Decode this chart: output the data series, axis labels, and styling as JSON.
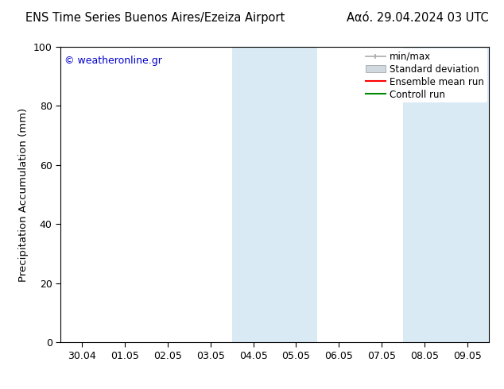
{
  "title_left": "ENS Time Series Buenos Aires/Ezeiza Airport",
  "title_right": "Ααό. 29.04.2024 03 UTC",
  "ylabel": "Precipitation Accumulation (mm)",
  "watermark": "© weatheronline.gr",
  "watermark_color": "#0000cc",
  "ylim": [
    0,
    100
  ],
  "yticks": [
    0,
    20,
    40,
    60,
    80,
    100
  ],
  "xtick_labels": [
    "30.04",
    "01.05",
    "02.05",
    "03.05",
    "04.05",
    "05.05",
    "06.05",
    "07.05",
    "08.05",
    "09.05"
  ],
  "background_color": "#ffffff",
  "plot_bg_color": "#ffffff",
  "shaded_regions": [
    {
      "xstart": 3.5,
      "xend": 4.5,
      "color": "#daeaf5"
    },
    {
      "xstart": 4.5,
      "xend": 5.5,
      "color": "#daeaf5"
    },
    {
      "xstart": 7.5,
      "xend": 8.5,
      "color": "#daeaf5"
    },
    {
      "xstart": 8.5,
      "xend": 9.5,
      "color": "#daeaf5"
    }
  ],
  "legend_items": [
    {
      "label": "min/max",
      "color": "#aaaaaa",
      "type": "errorbar"
    },
    {
      "label": "Standard deviation",
      "color": "#cccccc",
      "type": "bar"
    },
    {
      "label": "Ensemble mean run",
      "color": "#ff0000",
      "type": "line"
    },
    {
      "label": "Controll run",
      "color": "#008800",
      "type": "line"
    }
  ],
  "title_fontsize": 10.5,
  "axis_fontsize": 9.5,
  "tick_fontsize": 9,
  "legend_fontsize": 8.5
}
